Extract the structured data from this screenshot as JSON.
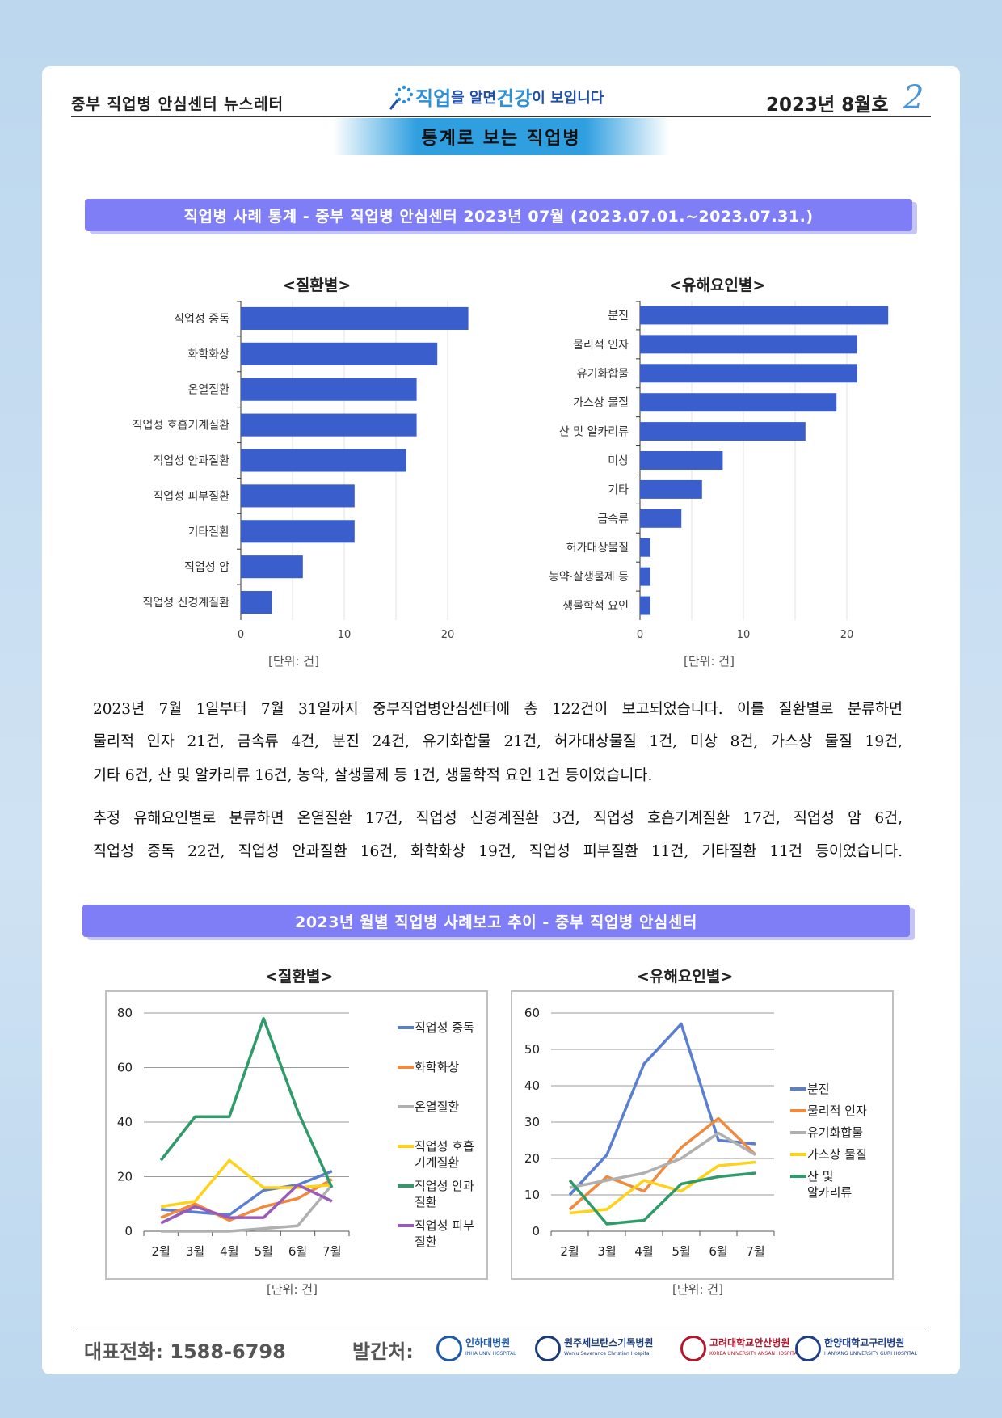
{
  "header": {
    "left": "중부 직업병 안심센터 뉴스레터",
    "slogan_parts": [
      "직업",
      "을 알면 ",
      "건강",
      "이 보입니다"
    ],
    "issue": "2023년 8월호",
    "page": "2",
    "section": "통계로 보는 직업병"
  },
  "banner1": "직업병 사례 통계 - 중부 직업병 안심센터  2023년 07월 (2023.07.01.~2023.07.31.)",
  "banner2": "2023년 월별 직업병 사례보고 추이 - 중부 직업병 안심센터",
  "unit_label": "[단위: 건]",
  "paragraphs": [
    [
      "2023년 7월 1일부터 7월 31일까지 중부직업병안심센터에 총 122건이 보고되었습니다. 이를 질환별로 분류하면",
      "물리적 인자 21건, 금속류 4건, 분진 24건, 유기화합물 21건, 허가대상물질 1건, 미상 8건, 가스상 물질 19건,",
      "기타 6건, 산 및 알카리류 16건, 농약, 살생물제 등 1건, 생물학적 요인 1건 등이었습니다."
    ],
    [
      "추정 유해요인별로 분류하면 온열질환 17건, 직업성 신경계질환 3건, 직업성 호흡기계질환 17건, 직업성 암 6건,",
      "직업성 중독 22건, 직업성 안과질환 16건, 화학화상 19건, 직업성 피부질환 11건, 기타질환 11건 등이었습니다."
    ]
  ],
  "footer": {
    "phone": "대표전화:  1588-6798",
    "publisher_label": "발간처:",
    "logos": [
      {
        "name": "인하대병원",
        "sub": "INHA UNIV HOSPITAL",
        "color": "#1e5aa8"
      },
      {
        "name": "원주세브란스기독병원",
        "sub": "Wonju Severance Christian Hospital",
        "color": "#1a3a78"
      },
      {
        "name": "고려대학교안산병원",
        "sub": "KOREA UNIVERSITY ANSAN HOSPITAL",
        "color": "#b4162c"
      },
      {
        "name": "한양대학교구리병원",
        "sub": "HANYANG UNIVERSITY GURI HOSPITAL",
        "color": "#1f3f86"
      }
    ]
  },
  "chart_data": [
    {
      "type": "bar",
      "orientation": "horizontal",
      "title": "<질환별>",
      "categories": [
        "직업성 중독",
        "화학화상",
        "온열질환",
        "직업성 호흡기계질환",
        "직업성 안과질환",
        "직업성 피부질환",
        "기타질환",
        "직업성 암",
        "직업성 신경계질환"
      ],
      "values": [
        22,
        19,
        17,
        17,
        16,
        11,
        11,
        6,
        3
      ],
      "xlim": [
        0,
        25
      ],
      "xticks": [
        0,
        10,
        20
      ],
      "xlabel": "[단위: 건]",
      "color": "#3a5fcd",
      "grid": true
    },
    {
      "type": "bar",
      "orientation": "horizontal",
      "title": "<유해요인별>",
      "categories": [
        "분진",
        "물리적 인자",
        "유기화합물",
        "가스상 물질",
        "산 및 알카리류",
        "미상",
        "기타",
        "금속류",
        "허가대상물질",
        "농약·살생물제 등",
        "생물학적 요인"
      ],
      "values": [
        24,
        21,
        21,
        19,
        16,
        8,
        6,
        4,
        1,
        1,
        1
      ],
      "xlim": [
        0,
        25
      ],
      "xticks": [
        0,
        10,
        20
      ],
      "xlabel": "[단위: 건]",
      "color": "#3a5fcd",
      "grid": true
    },
    {
      "type": "line",
      "title": "<질환별>",
      "x": [
        "2월",
        "3월",
        "4월",
        "5월",
        "6월",
        "7월"
      ],
      "ylim": [
        0,
        80
      ],
      "yticks": [
        0,
        20,
        40,
        60,
        80
      ],
      "xlabel": "[단위: 건]",
      "legend": "right",
      "series": [
        {
          "name": "직업성 중독",
          "values": [
            8,
            7,
            6,
            15,
            17,
            22
          ],
          "color": "#5b7fd0"
        },
        {
          "name": "화학화상",
          "values": [
            5,
            10,
            4,
            9,
            12,
            19
          ],
          "color": "#f08a3c"
        },
        {
          "name": "온열질환",
          "values": [
            0,
            0,
            0,
            1,
            2,
            17
          ],
          "color": "#b0b0b0"
        },
        {
          "name": "직업성 호흡 기계질환",
          "values": [
            9,
            11,
            26,
            16,
            16,
            17
          ],
          "color": "#ffd21a"
        },
        {
          "name": "직업성 안과 질환",
          "values": [
            26,
            42,
            42,
            78,
            44,
            16
          ],
          "color": "#2f9a6a"
        },
        {
          "name": "직업성 피부 질환",
          "values": [
            3,
            9,
            5,
            5,
            17,
            11
          ],
          "color": "#9a5ab8"
        }
      ]
    },
    {
      "type": "line",
      "title": "<유해요인별>",
      "x": [
        "2월",
        "3월",
        "4월",
        "5월",
        "6월",
        "7월"
      ],
      "ylim": [
        0,
        60
      ],
      "yticks": [
        0,
        10,
        20,
        30,
        40,
        50,
        60
      ],
      "xlabel": "[단위: 건]",
      "legend": "right",
      "series": [
        {
          "name": "분진",
          "values": [
            10,
            21,
            46,
            57,
            25,
            24
          ],
          "color": "#5b7fd0"
        },
        {
          "name": "물리적 인자",
          "values": [
            6,
            15,
            11,
            23,
            31,
            21
          ],
          "color": "#f08a3c"
        },
        {
          "name": "유기화합물",
          "values": [
            12,
            14,
            16,
            20,
            27,
            21
          ],
          "color": "#b0b0b0"
        },
        {
          "name": "가스상 물질",
          "values": [
            5,
            6,
            14,
            11,
            18,
            19
          ],
          "color": "#ffd21a"
        },
        {
          "name": "산 및 알카리류",
          "values": [
            14,
            2,
            3,
            13,
            15,
            16
          ],
          "color": "#2f9a6a"
        }
      ]
    }
  ]
}
